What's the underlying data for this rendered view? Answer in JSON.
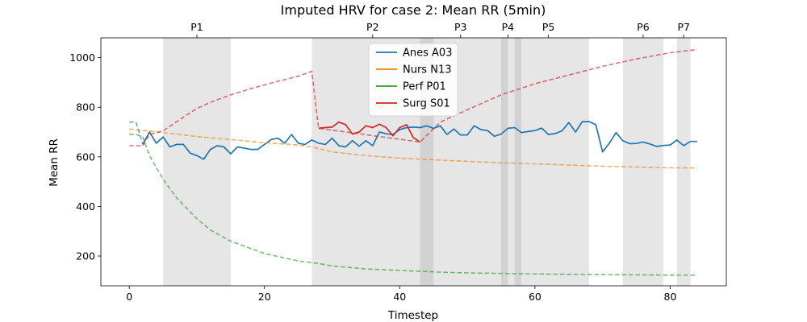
{
  "chart_data": {
    "type": "line",
    "title": "Imputed HRV for case 2: Mean RR (5min)",
    "xlabel": "Timestep",
    "ylabel": "Mean RR",
    "xlim": [
      -4.2,
      88.3
    ],
    "ylim": [
      80,
      1080
    ],
    "xticks": [
      0,
      20,
      40,
      60,
      80
    ],
    "yticks": [
      200,
      400,
      600,
      800,
      1000
    ],
    "grid": false,
    "legend_position": "top-center",
    "phases": [
      {
        "label": "P1",
        "x0": 5,
        "x1": 15
      },
      {
        "label": "P2",
        "x0": 27,
        "x1": 45
      },
      {
        "label": "P3",
        "x0": 43,
        "x1": 68
      },
      {
        "label": "P4",
        "x0": 55,
        "x1": 56
      },
      {
        "label": "P5",
        "x0": 57,
        "x1": 58
      },
      {
        "label": "P6",
        "x0": 73,
        "x1": 79
      },
      {
        "label": "P7",
        "x0": 81,
        "x1": 83
      }
    ],
    "phase_label_x": [
      10,
      36,
      49,
      56,
      62,
      76,
      82
    ],
    "series": [
      {
        "name": "Anes A03",
        "color": "#1f77b4",
        "observed": {
          "x": [
            2,
            3,
            4,
            5,
            6,
            7,
            8,
            9,
            10,
            11,
            12,
            13,
            14,
            15,
            16,
            17,
            18,
            19,
            20,
            21,
            22,
            23,
            24,
            25,
            26,
            27,
            28,
            29,
            30,
            31,
            32,
            33,
            34,
            35,
            36,
            37,
            38,
            39,
            40,
            41,
            42,
            43,
            44,
            45,
            46,
            47,
            48,
            49,
            50,
            51,
            52,
            53,
            54,
            55,
            56,
            57,
            58,
            59,
            60,
            61,
            62,
            63,
            64,
            65,
            66,
            67,
            68,
            69,
            70,
            71,
            72,
            73,
            74,
            75,
            76,
            77,
            78,
            79,
            80,
            81,
            82,
            83,
            84
          ],
          "y": [
            650,
            700,
            655,
            680,
            640,
            650,
            650,
            615,
            605,
            590,
            630,
            645,
            640,
            612,
            640,
            635,
            630,
            630,
            650,
            670,
            675,
            655,
            690,
            655,
            650,
            668,
            655,
            650,
            675,
            645,
            640,
            665,
            643,
            665,
            645,
            700,
            693,
            690,
            710,
            718,
            720,
            718,
            725,
            715,
            725,
            690,
            712,
            688,
            688,
            725,
            710,
            706,
            683,
            692,
            715,
            718,
            698,
            702,
            706,
            716,
            690,
            694,
            705,
            738,
            700,
            742,
            742,
            730,
            620,
            655,
            698,
            665,
            653,
            654,
            660,
            652,
            642,
            646,
            648,
            668,
            645,
            662,
            662
          ]
        },
        "imputed": {
          "x": [
            0,
            1,
            2
          ],
          "y": [
            740,
            740,
            650
          ]
        }
      },
      {
        "name": "Nurs N13",
        "color": "#ff7f0e",
        "observed": {
          "x": [],
          "y": []
        },
        "imputed": {
          "x": [
            0,
            5,
            10,
            15,
            20,
            25,
            27,
            30,
            35,
            40,
            45,
            50,
            55,
            60,
            65,
            70,
            75,
            80,
            84
          ],
          "y": [
            712,
            698,
            682,
            670,
            657,
            648,
            640,
            620,
            605,
            595,
            588,
            582,
            576,
            572,
            567,
            562,
            559,
            556,
            555
          ]
        }
      },
      {
        "name": "Perf P01",
        "color": "#2ca02c",
        "observed": {
          "x": [],
          "y": []
        },
        "imputed": {
          "x": [
            0,
            1,
            2,
            3,
            5,
            7,
            10,
            12,
            15,
            20,
            25,
            28,
            30,
            35,
            40,
            45,
            50,
            55,
            60,
            65,
            70,
            75,
            80,
            84
          ],
          "y": [
            690,
            690,
            680,
            605,
            510,
            435,
            350,
            305,
            260,
            210,
            180,
            170,
            160,
            148,
            142,
            136,
            132,
            130,
            128,
            126,
            125,
            124,
            123,
            123
          ]
        }
      },
      {
        "name": "Surg S01",
        "color": "#d62728",
        "observed": {
          "x": [
            28,
            29,
            30,
            31,
            32,
            33,
            34,
            35,
            36,
            37,
            38,
            39,
            40,
            41,
            42,
            43
          ],
          "y": [
            715,
            718,
            720,
            740,
            730,
            692,
            700,
            725,
            718,
            732,
            718,
            685,
            718,
            730,
            678,
            660
          ]
        },
        "imputed": {
          "x": [
            0,
            1,
            2,
            3,
            5,
            8,
            10,
            12,
            15,
            18,
            20,
            22,
            25,
            27,
            28,
            43,
            46,
            50,
            55,
            60,
            65,
            70,
            75,
            80,
            84
          ],
          "y": [
            645,
            645,
            645,
            690,
            705,
            760,
            795,
            820,
            850,
            875,
            890,
            905,
            925,
            945,
            715,
            660,
            740,
            790,
            850,
            895,
            930,
            965,
            995,
            1020,
            1033
          ]
        }
      }
    ]
  }
}
